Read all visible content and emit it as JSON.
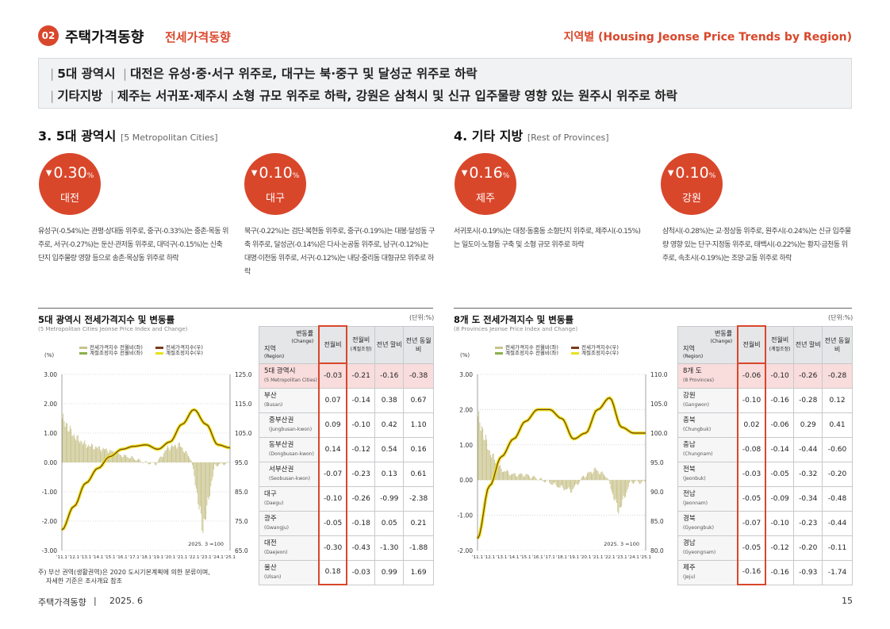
{
  "header": {
    "badge": "02",
    "title": "주택가격동향",
    "subtitle": "전세가격동향",
    "right": "지역별 (Housing Jeonse Price Trends by Region)"
  },
  "summary": {
    "line1": {
      "label": "5대 광역시",
      "text": "대전은 유성·중·서구 위주로, 대구는 북·중구 및 달성군 위주로 하락"
    },
    "line2": {
      "label": "기타지방",
      "text": "제주는 서귀포·제주시 소형 규모 위주로 하락, 강원은 삼척시 및 신규 입주물량 영향 있는 원주시 위주로 하락"
    }
  },
  "left": {
    "section_title": "3. 5대 광역시",
    "section_en": "[5 Metropolitan Cities]",
    "highlights": [
      {
        "value": "0.30",
        "unit": "%",
        "region": "대전",
        "desc": "유성구(-0.54%)는 관평·상대동 위주로, 중구(-0.33%)는 중촌·목동 위주로, 서구(-0.27%)는 둔산·관저동 위주로, 대덕구(-0.15%)는 신축 단지 입주물량 영향 등으로 송촌·목상동 위주로 하락"
      },
      {
        "value": "0.10",
        "unit": "%",
        "region": "대구",
        "desc": "북구(-0.22%)는 검단·복현동 위주로, 중구(-0.19%)는 대봉·달성동 구축 위주로, 달성군(-0.14%)은 다사·논공동 위주로, 남구(-0.12%)는 대명·이천동 위주로, 서구(-0.12%)는 내당·중리동 대형규모 위주로 하락"
      }
    ],
    "chart_title": "5대 광역시 전세가격지수 및 변동률",
    "chart_sub": "(5 Metropolitan Cities Jeonse Price Index and Change)",
    "unit": "(단위:%)",
    "legend": [
      "전세가격지수 전월비(좌)",
      "전세가격지수(우)",
      "계절조정지수 전월비(좌)",
      "계절조정지수(우)"
    ],
    "ylabel": "(%)",
    "left_ticks": [
      "3.00",
      "2.00",
      "1.00",
      "0.00",
      "-1.00",
      "-2.00",
      "-3.00"
    ],
    "right_ticks": [
      "125.0",
      "115.0",
      "105.0",
      "95.0",
      "85.0",
      "75.0",
      "65.0"
    ],
    "x_ticks": [
      "'11.1",
      "'12.1",
      "'13.1",
      "'14.1",
      "'15.1",
      "'16.1",
      "'17.1",
      "'18.1",
      "'19.1",
      "'20.1",
      "'21.1",
      "'22.1",
      "'23.1",
      "'24.1",
      "'25.1"
    ],
    "base_note": "2025. 3 =100",
    "table_headers": {
      "change": "변동률",
      "change_en": "(Change)",
      "region": "지역",
      "region_en": "(Region)",
      "c1": "전월비",
      "c2": "전월비",
      "c2_sub": "(계절조정)",
      "c3": "전년 말비",
      "c4": "전년 동월비"
    },
    "rows": [
      {
        "name": "5대 광역시",
        "en": "(5 Metropolitan Cities)",
        "v": [
          "-0.03",
          "-0.21",
          "-0.16",
          "-0.38"
        ]
      },
      {
        "name": "부산",
        "en": "(Busan)",
        "v": [
          "0.07",
          "-0.14",
          "0.38",
          "0.67"
        ]
      },
      {
        "name": "중부산권",
        "en": "(Jungbusan-kwon)",
        "v": [
          "0.09",
          "-0.10",
          "0.42",
          "1.10"
        ],
        "indent": true
      },
      {
        "name": "동부산권",
        "en": "(Dongbusan-kwon)",
        "v": [
          "0.14",
          "-0.12",
          "0.54",
          "0.16"
        ],
        "indent": true
      },
      {
        "name": "서부산권",
        "en": "(Seobusan-kwon)",
        "v": [
          "-0.07",
          "-0.23",
          "0.13",
          "0.61"
        ],
        "indent": true
      },
      {
        "name": "대구",
        "en": "(Daegu)",
        "v": [
          "-0.10",
          "-0.26",
          "-0.99",
          "-2.38"
        ]
      },
      {
        "name": "광주",
        "en": "(Gwangju)",
        "v": [
          "-0.05",
          "-0.18",
          "0.05",
          "0.21"
        ]
      },
      {
        "name": "대전",
        "en": "(Daejeon)",
        "v": [
          "-0.30",
          "-0.43",
          "-1.30",
          "-1.88"
        ]
      },
      {
        "name": "울산",
        "en": "(Ulsan)",
        "v": [
          "0.18",
          "-0.03",
          "0.99",
          "1.69"
        ]
      }
    ],
    "note1": "주) 부산 권역(생활권역)은 2020 도시기본계획에 의한 분류이며,",
    "note2": "자세한 기준은 조사개요 참조"
  },
  "right": {
    "section_title": "4. 기타 지방",
    "section_en": "[Rest of Provinces]",
    "highlights": [
      {
        "value": "0.16",
        "unit": "%",
        "region": "제주",
        "desc": "서귀포시(-0.19%)는 대정·동홍동 소형단지 위주로, 제주시(-0.15%)는 일도이·노형동 구축 및 소형 규모 위주로 하락"
      },
      {
        "value": "0.10",
        "unit": "%",
        "region": "강원",
        "desc": "삼척시(-0.28%)는 교·정상동 위주로, 원주시(-0.24%)는 신규 입주물량 영향 있는 단구·지정동 위주로, 태백시(-0.22%)는 황지·금천동 위주로, 속초시(-0.19%)는 조양·교동 위주로 하락"
      }
    ],
    "chart_title": "8개 도 전세가격지수 및 변동률",
    "chart_sub": "(8 Provinces Jeonse Price Index and Change)",
    "unit": "(단위:%)",
    "legend": [
      "전세가격지수 전월비(좌)",
      "전세가격지수(우)",
      "계절조정지수 전월비(좌)",
      "계절조정지수(우)"
    ],
    "ylabel": "(%)",
    "left_ticks": [
      "3.00",
      "2.00",
      "1.00",
      "0.00",
      "-1.00",
      "-2.00"
    ],
    "right_ticks": [
      "110.0",
      "105.0",
      "100.0",
      "95.0",
      "90.0",
      "85.0",
      "80.0"
    ],
    "x_ticks": [
      "'11.1",
      "'12.1",
      "'13.1",
      "'14.1",
      "'15.1",
      "'16.1",
      "'17.1",
      "'18.1",
      "'19.1",
      "'20.1",
      "'21.1",
      "'22.1",
      "'23.1",
      "'24.1",
      "'25.1"
    ],
    "base_note": "2025. 3 =100",
    "table_headers": {
      "change": "변동률",
      "change_en": "(Change)",
      "region": "지역",
      "region_en": "(Region)",
      "c1": "전월비",
      "c2": "전월비",
      "c2_sub": "(계절조정)",
      "c3": "전년 말비",
      "c4": "전년 동월비"
    },
    "rows": [
      {
        "name": "8개 도",
        "en": "(8 Provinces)",
        "v": [
          "-0.06",
          "-0.10",
          "-0.26",
          "-0.28"
        ]
      },
      {
        "name": "강원",
        "en": "(Gangwon)",
        "v": [
          "-0.10",
          "-0.16",
          "-0.28",
          "0.12"
        ]
      },
      {
        "name": "충북",
        "en": "(Chungbuk)",
        "v": [
          "0.02",
          "-0.06",
          "0.29",
          "0.41"
        ]
      },
      {
        "name": "충남",
        "en": "(Chungnam)",
        "v": [
          "-0.08",
          "-0.14",
          "-0.44",
          "-0.60"
        ]
      },
      {
        "name": "전북",
        "en": "(Jeonbuk)",
        "v": [
          "-0.03",
          "-0.05",
          "-0.32",
          "-0.20"
        ]
      },
      {
        "name": "전남",
        "en": "(Jeonnam)",
        "v": [
          "-0.05",
          "-0.09",
          "-0.34",
          "-0.48"
        ]
      },
      {
        "name": "경북",
        "en": "(Gyeongbuk)",
        "v": [
          "-0.07",
          "-0.10",
          "-0.23",
          "-0.44"
        ]
      },
      {
        "name": "경남",
        "en": "(Gyeongnam)",
        "v": [
          "-0.05",
          "-0.12",
          "-0.20",
          "-0.11"
        ]
      },
      {
        "name": "제주",
        "en": "(Jeju)",
        "v": [
          "-0.16",
          "-0.16",
          "-0.93",
          "-1.74"
        ]
      }
    ]
  },
  "footer": {
    "left": "주택가격동향",
    "sep": "|",
    "date": "2025. 6",
    "page": "15"
  },
  "colors": {
    "accent": "#d9472b",
    "bar_mom": "#c8c28a",
    "bar_sa": "#8bb04a",
    "line_index": "#7a3b1a",
    "line_sa": "#e6e21c"
  },
  "chart_data": [
    {
      "type": "line",
      "title": "5대 광역시 전세가격지수 및 변동률",
      "x_labels": [
        "'11.1",
        "'12.1",
        "'13.1",
        "'14.1",
        "'15.1",
        "'16.1",
        "'17.1",
        "'18.1",
        "'19.1",
        "'20.1",
        "'21.1",
        "'22.1",
        "'23.1",
        "'24.1",
        "'25.1"
      ],
      "ylim_left": [
        -3,
        3
      ],
      "ylim_right": [
        65,
        125
      ],
      "series": [
        {
          "name": "전세가격지수(우)",
          "values": [
            72,
            80,
            88,
            93,
            97,
            99.5,
            100.5,
            101,
            99.5,
            102,
            108,
            113,
            108,
            101,
            100
          ]
        },
        {
          "name": "전세가격지수 전월비(좌)",
          "values": [
            1.5,
            0.9,
            0.6,
            0.5,
            0.4,
            0.25,
            0.15,
            0.0,
            -0.05,
            0.5,
            0.6,
            0.1,
            -2.3,
            -0.1,
            -0.03
          ]
        }
      ]
    },
    {
      "type": "line",
      "title": "8개 도 전세가격지수 및 변동률",
      "x_labels": [
        "'11.1",
        "'12.1",
        "'13.1",
        "'14.1",
        "'15.1",
        "'16.1",
        "'17.1",
        "'18.1",
        "'19.1",
        "'20.1",
        "'21.1",
        "'22.1",
        "'23.1",
        "'24.1",
        "'25.1"
      ],
      "ylim_left": [
        -2,
        3
      ],
      "ylim_right": [
        80,
        110
      ],
      "series": [
        {
          "name": "전세가격지수(우)",
          "values": [
            82,
            91,
            96,
            99,
            102,
            104,
            104,
            102.5,
            99,
            100,
            104,
            106,
            101,
            100,
            100
          ]
        },
        {
          "name": "전세가격지수 전월비(좌)",
          "values": [
            1.8,
            0.8,
            0.3,
            0.15,
            0.15,
            0.05,
            -0.05,
            -0.2,
            -0.3,
            0.1,
            0.3,
            0.1,
            -0.9,
            -0.05,
            -0.06
          ]
        }
      ]
    }
  ]
}
